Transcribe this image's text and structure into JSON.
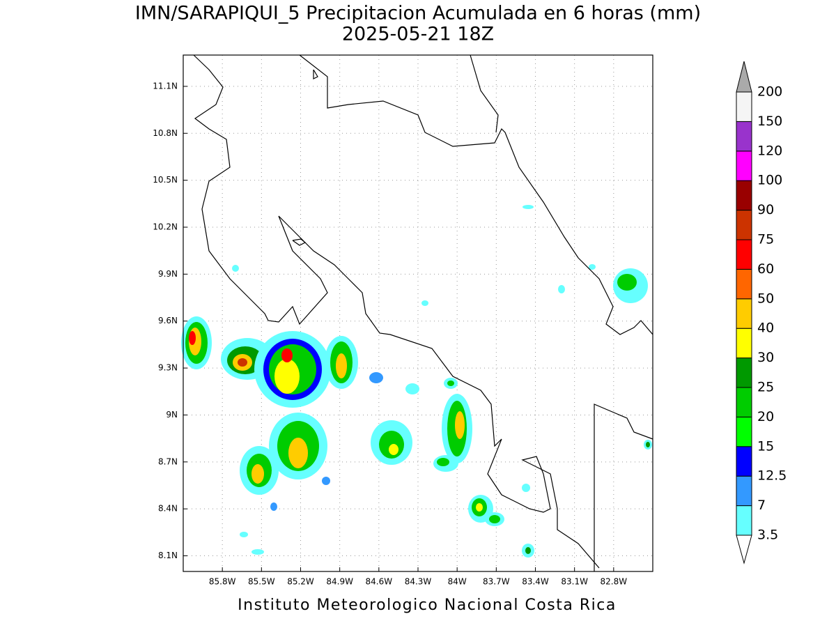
{
  "chart_data": {
    "type": "map",
    "title": "IMN/SARAPIQUI_5 Precipitacion Acumulada en 6 horas (mm)",
    "subtitle": "2025-05-21 18Z",
    "footer": "Instituto Meteorologico Nacional Costa Rica",
    "xlim": [
      -86.1,
      -82.5
    ],
    "ylim": [
      8.0,
      11.3
    ],
    "xticks": [
      {
        "value": -85.8,
        "label": "85.8W"
      },
      {
        "value": -85.5,
        "label": "85.5W"
      },
      {
        "value": -85.2,
        "label": "85.2W"
      },
      {
        "value": -84.9,
        "label": "84.9W"
      },
      {
        "value": -84.6,
        "label": "84.6W"
      },
      {
        "value": -84.3,
        "label": "84.3W"
      },
      {
        "value": -84,
        "label": "84W"
      },
      {
        "value": -83.7,
        "label": "83.7W"
      },
      {
        "value": -83.4,
        "label": "83.4W"
      },
      {
        "value": -83.1,
        "label": "83.1W"
      },
      {
        "value": -82.8,
        "label": "82.8W"
      }
    ],
    "yticks": [
      {
        "value": 8.1,
        "label": "8.1N"
      },
      {
        "value": 8.4,
        "label": "8.4N"
      },
      {
        "value": 8.7,
        "label": "8.7N"
      },
      {
        "value": 9,
        "label": "9N"
      },
      {
        "value": 9.3,
        "label": "9.3N"
      },
      {
        "value": 9.6,
        "label": "9.6N"
      },
      {
        "value": 9.9,
        "label": "9.9N"
      },
      {
        "value": 10.2,
        "label": "10.2N"
      },
      {
        "value": 10.5,
        "label": "10.5N"
      },
      {
        "value": 10.8,
        "label": "10.8N"
      },
      {
        "value": 11.1,
        "label": "11.1N"
      }
    ],
    "grid": true,
    "colorbar": {
      "levels": [
        3.5,
        7,
        12.5,
        15,
        20,
        25,
        30,
        40,
        50,
        60,
        75,
        90,
        100,
        120,
        150,
        200
      ],
      "colors": [
        "#66ffff",
        "#3399ff",
        "#0000ff",
        "#00ff00",
        "#00cc00",
        "#009900",
        "#ffff00",
        "#ffcc00",
        "#ff6600",
        "#ff0000",
        "#cc3300",
        "#990000",
        "#ff00ff",
        "#9933cc",
        "#f5f5f5"
      ],
      "under_color": "#ffffff",
      "over_color": "#aaaaaa"
    }
  }
}
